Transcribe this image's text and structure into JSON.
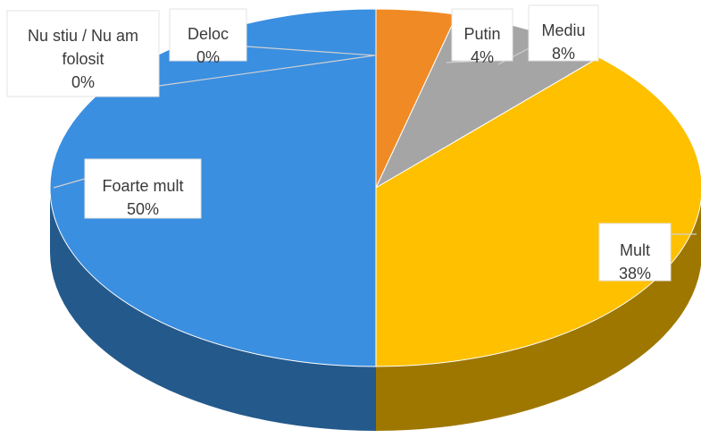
{
  "chart_data": {
    "type": "pie",
    "title": "",
    "legend": "none",
    "style": "3d",
    "slices": [
      {
        "label": "Nu stiu / Nu am folosit",
        "value": 0,
        "pct_label": "0%",
        "color": "#a5a5a5"
      },
      {
        "label": "Deloc",
        "value": 0,
        "pct_label": "0%",
        "color": "#5b9bd5"
      },
      {
        "label": "Putin",
        "value": 4,
        "pct_label": "4%",
        "color": "#f08a24"
      },
      {
        "label": "Mediu",
        "value": 8,
        "pct_label": "8%",
        "color": "#a5a5a5"
      },
      {
        "label": "Mult",
        "value": 38,
        "pct_label": "38%",
        "color": "#ffc000"
      },
      {
        "label": "Foarte mult",
        "value": 50,
        "pct_label": "50%",
        "color": "#3a8fe0"
      }
    ]
  }
}
